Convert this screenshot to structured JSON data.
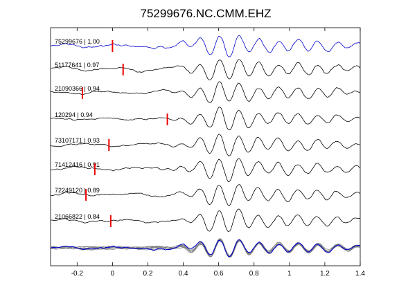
{
  "chart_data": {
    "type": "line",
    "title": "75299676.NC.CMM.EHZ",
    "xlim": [
      -0.35,
      1.4
    ],
    "xticks": [
      -0.2,
      0,
      0.2,
      0.4,
      0.6,
      0.8,
      1.0,
      1.2,
      1.4
    ],
    "xtick_labels": [
      "-0.2",
      "0",
      "0.2",
      "0.4",
      "0.6",
      "0.8",
      "1",
      "1.2",
      "1.4"
    ],
    "grid": false,
    "legend": "none",
    "colors": {
      "reference": "#0000cc",
      "trace": "#000000",
      "pick": "#ee0000",
      "stack": "#808080"
    },
    "traces": [
      {
        "label": "75299676 | 1.00",
        "pick_time": 0.0,
        "reference": true
      },
      {
        "label": "51177641 | 0.97",
        "pick_time": 0.06
      },
      {
        "label": "21090366 | 0.94",
        "pick_time": -0.17
      },
      {
        "label": "120294 | 0.94",
        "pick_time": 0.31
      },
      {
        "label": "73107171 | 0.93",
        "pick_time": -0.02
      },
      {
        "label": "71412416 | 0.91",
        "pick_time": -0.1
      },
      {
        "label": "72249120 | 0.89",
        "pick_time": -0.15
      },
      {
        "label": "21066822 | 0.84",
        "pick_time": -0.01
      }
    ],
    "stack_panel": {
      "present": true,
      "overlay_count": 8
    }
  }
}
